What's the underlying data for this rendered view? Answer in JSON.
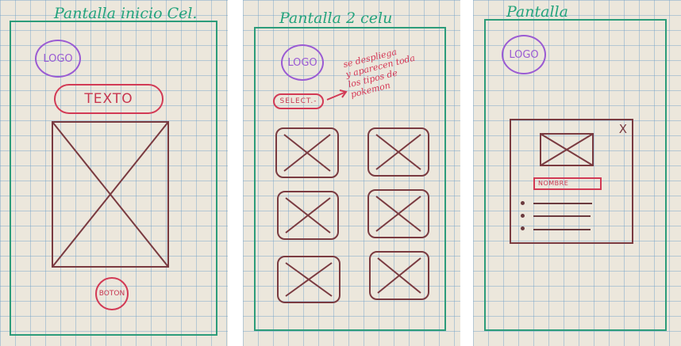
{
  "colors": {
    "paper": "#ece7dc",
    "grid": "#6ea0c8",
    "frame": "#2c9c7a",
    "title": "#23a37c",
    "logo": "#9a5bd3",
    "accent_red": "#d23a55",
    "sketch": "#7a3a40"
  },
  "screens": [
    {
      "title": "Pantalla inicio Cel.",
      "logo_label": "LOGO",
      "text_pill": "TEXTO",
      "button_label": "BOTON"
    },
    {
      "title": "Pantalla 2 celu",
      "logo_label": "LOGO",
      "select_label": "SELECT.-",
      "note_lines": [
        "se despliega",
        "y aparecen toda",
        "los tipos de",
        "pokemon"
      ],
      "grid_items": 6
    },
    {
      "title": "Pantalla",
      "logo_label": "LOGO",
      "close_icon": "X",
      "name_label": "NOMBRE",
      "detail_lines": 3
    }
  ]
}
